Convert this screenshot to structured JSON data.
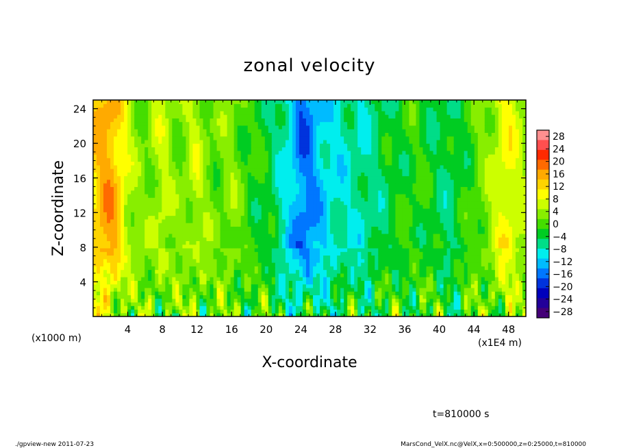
{
  "chart_data": {
    "type": "heatmap",
    "title": "zonal velocity",
    "xlabel": "X-coordinate",
    "ylabel": "Z-coordinate",
    "x_unit_note": "(x1E4 m)",
    "y_unit_note": "(x1000 m)",
    "time_label": "t=810000 s",
    "x_range": [
      0,
      50
    ],
    "y_range": [
      0,
      25
    ],
    "x_ticks": [
      "4",
      "8",
      "12",
      "16",
      "20",
      "24",
      "28",
      "32",
      "36",
      "40",
      "44",
      "48"
    ],
    "y_ticks": [
      "4",
      "8",
      "12",
      "16",
      "20",
      "24"
    ],
    "colorbar": {
      "range": [
        -30,
        30
      ],
      "ticks": [
        "28",
        "24",
        "20",
        "16",
        "12",
        "8",
        "4",
        "0",
        "−4",
        "−8",
        "−12",
        "−16",
        "−20",
        "−24",
        "−28"
      ],
      "colors": [
        "#ff8f8f",
        "#ff4f4f",
        "#ff2a00",
        "#ff6a00",
        "#ffaa00",
        "#ffd400",
        "#ffff00",
        "#ccff00",
        "#88ee00",
        "#44dd00",
        "#00cc22",
        "#00dd88",
        "#00eeee",
        "#00bbff",
        "#0077ff",
        "#0033dd",
        "#0000bb",
        "#220099",
        "#440077"
      ]
    },
    "column_profile": {
      "x": [
        0,
        1,
        2,
        3,
        4,
        5,
        6,
        7,
        8,
        9,
        10,
        11,
        12,
        13,
        14,
        15,
        16,
        17,
        18,
        19,
        20,
        21,
        22,
        23,
        24,
        25,
        26,
        27,
        28,
        29,
        30,
        31,
        32,
        33,
        34,
        35,
        36,
        37,
        38,
        39,
        40,
        41,
        42,
        43,
        44,
        45,
        46,
        47,
        48,
        49,
        50
      ],
      "upper_value": [
        12,
        15,
        16,
        12,
        6,
        3,
        2,
        4,
        6,
        3,
        2,
        4,
        6,
        3,
        1,
        2,
        3,
        1,
        -1,
        -2,
        -3,
        -5,
        -8,
        -12,
        -16,
        -15,
        -12,
        -10,
        -9,
        -8,
        -7,
        -8,
        -6,
        -5,
        -4,
        -3,
        -2,
        -1,
        -2,
        -3,
        -4,
        -5,
        -4,
        -2,
        0,
        2,
        4,
        8,
        9,
        6,
        4
      ]
    },
    "lower_layer": {
      "height_top": 8,
      "note": "small-scale alternating features with peaks near z=0"
    }
  },
  "footer": {
    "left": "./gpview-new   2011-07-23",
    "right": "MarsCond_VelX.nc@VelX,x=0:500000,z=0:25000,t=810000"
  }
}
